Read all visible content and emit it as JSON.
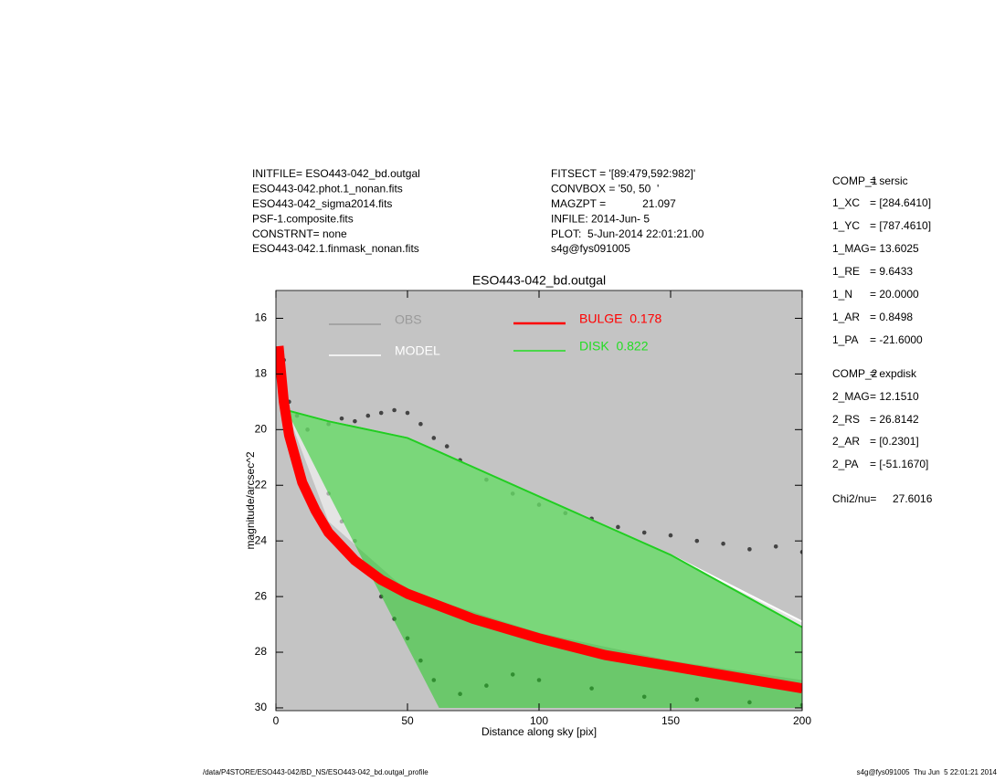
{
  "header": {
    "left": [
      "INITFILE= ESO443-042_bd.outgal",
      "ESO443-042.phot.1_nonan.fits",
      "ESO443-042_sigma2014.fits",
      "PSF-1.composite.fits",
      "CONSTRNT= none",
      "ESO443-042.1.finmask_nonan.fits"
    ],
    "middle": [
      "FITSECT = '[89:479,592:982]'",
      "CONVBOX = '50, 50  '",
      "MAGZPT =            21.097",
      "INFILE: 2014-Jun- 5",
      "PLOT:  5-Jun-2014 22:01:21.00",
      "s4g@fys091005"
    ]
  },
  "params": [
    {
      "key": "COMP_1",
      "value": "= sersic"
    },
    {
      "key": "1_XC",
      "value": "= [284.6410]"
    },
    {
      "key": "1_YC",
      "value": "= [787.4610]"
    },
    {
      "key": "1_MAG",
      "value": "= 13.6025"
    },
    {
      "key": "1_RE",
      "value": "= 9.6433"
    },
    {
      "key": "1_N",
      "value": "= 20.0000"
    },
    {
      "key": "1_AR",
      "value": "= 0.8498"
    },
    {
      "key": "1_PA",
      "value": "= -21.6000"
    },
    {
      "key": "COMP_2",
      "value": "= expdisk"
    },
    {
      "key": "2_MAG",
      "value": "= 12.1510"
    },
    {
      "key": "2_RS",
      "value": "= 26.8142"
    },
    {
      "key": "2_AR",
      "value": "= [0.2301]"
    },
    {
      "key": "2_PA",
      "value": "= [-51.1670]"
    },
    {
      "key": "Chi2/nu=",
      "value": "27.6016"
    }
  ],
  "footer": {
    "left": "/data/P4STORE/ESO443-042/BD_NS/ESO443-042_bd.outgal_profile",
    "right": "s4g@fys091005  Thu Jun  5 22:01:21 2014"
  },
  "chart_data": {
    "type": "scatter",
    "title": "ESO443-042_bd.outgal",
    "x_label": "Distance along sky [pix]",
    "y_label": "magnitude/arcsec^2",
    "xlim": [
      0,
      200
    ],
    "ylim": [
      30.1,
      15
    ],
    "xticks": [
      0,
      50,
      100,
      150,
      200
    ],
    "yticks": [
      16,
      18,
      20,
      22,
      24,
      26,
      28,
      30
    ],
    "background": "#c4c4c4",
    "series": [
      {
        "name": "OBS",
        "color": "#444444",
        "legend_color": "#9a9a9a",
        "kind": "points",
        "x": [
          3,
          5,
          8,
          12,
          20,
          25,
          30,
          35,
          40,
          45,
          50,
          55,
          60,
          65,
          70,
          80,
          90,
          100,
          110,
          120,
          130,
          140,
          150,
          160,
          170,
          180,
          190,
          200,
          20,
          25,
          30,
          35,
          40,
          45,
          50,
          55,
          60,
          70,
          80,
          90,
          100,
          120,
          140,
          160,
          180,
          200
        ],
        "values": [
          17.5,
          19.0,
          19.5,
          20.0,
          19.8,
          19.6,
          19.7,
          19.5,
          19.4,
          19.3,
          19.4,
          19.8,
          20.3,
          20.6,
          21.1,
          21.8,
          22.3,
          22.7,
          23.0,
          23.2,
          23.5,
          23.7,
          23.8,
          24.0,
          24.1,
          24.3,
          24.2,
          24.4,
          22.3,
          23.3,
          24.0,
          25.0,
          26.0,
          26.8,
          27.5,
          28.3,
          29.0,
          29.5,
          29.2,
          28.8,
          29.0,
          29.3,
          29.6,
          29.7,
          29.8,
          29.9
        ]
      },
      {
        "name": "MODEL",
        "color": "#ffffff",
        "legend_color": "#ffffff",
        "kind": "band",
        "x": [
          4,
          20,
          50,
          100,
          150,
          200
        ],
        "values": [
          19.3,
          19.7,
          20.3,
          22.4,
          24.5,
          26.9
        ],
        "low": [
          19.3,
          23.3,
          25.8,
          27.3,
          28.3,
          29.0
        ]
      },
      {
        "name": "DISK  0.822",
        "color": "#22cc22",
        "legend_color": "#22dd22",
        "kind": "band",
        "x": [
          4,
          20,
          50,
          62,
          100,
          150,
          200
        ],
        "values": [
          19.3,
          19.7,
          20.3,
          20.8,
          22.4,
          24.5,
          27.1
        ],
        "low": [
          19.3,
          22.3,
          27.8,
          30,
          30,
          30,
          30
        ]
      },
      {
        "name": "BULGE  0.178",
        "color": "#ff0000",
        "legend_color": "#ff0000",
        "kind": "thick",
        "x": [
          1,
          3,
          5,
          10,
          15,
          20,
          30,
          40,
          50,
          75,
          100,
          125,
          150,
          175,
          200
        ],
        "values": [
          17.0,
          19.0,
          20.2,
          21.9,
          22.9,
          23.7,
          24.7,
          25.4,
          25.9,
          26.8,
          27.5,
          28.1,
          28.5,
          28.9,
          29.3
        ]
      }
    ]
  }
}
